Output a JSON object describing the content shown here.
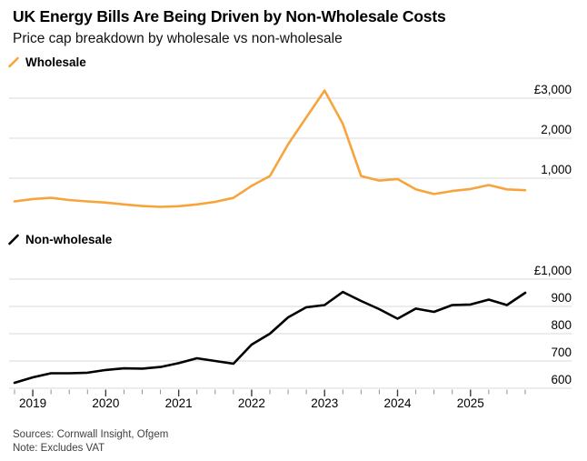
{
  "header": {
    "title": "UK Energy Bills Are Being Driven by Non-Wholesale Costs",
    "subtitle": "Price cap breakdown by wholesale vs non-wholesale"
  },
  "footer": {
    "sources": "Sources: Cornwall Insight, Ofgem",
    "note": "Note: Excludes VAT"
  },
  "colors": {
    "wholesale_line": "#F7A43C",
    "non_wholesale_line": "#000000",
    "gridline": "#D8D8D8",
    "minor_tick": "#8F8F8F",
    "major_tick": "#3C3C3C"
  },
  "x_axis": {
    "year_labels": [
      "2019",
      "2020",
      "2021",
      "2022",
      "2023",
      "2024",
      "2025"
    ],
    "quarters_per_year": 4
  },
  "chart_data": [
    {
      "type": "line",
      "name": "Wholesale",
      "color": "#F7A43C",
      "currency": "GBP",
      "x": [
        "2018 Q4",
        "2019 Q1",
        "2019 Q2",
        "2019 Q3",
        "2019 Q4",
        "2020 Q1",
        "2020 Q2",
        "2020 Q3",
        "2020 Q4",
        "2021 Q1",
        "2021 Q2",
        "2021 Q3",
        "2021 Q4",
        "2022 Q1",
        "2022 Q2",
        "2022 Q3",
        "2022 Q4",
        "2023 Q1",
        "2023 Q2",
        "2023 Q3",
        "2023 Q4",
        "2024 Q1",
        "2024 Q2",
        "2024 Q3",
        "2024 Q4",
        "2025 Q1",
        "2025 Q2",
        "2025 Q3",
        "2025 Q4"
      ],
      "values": [
        420,
        480,
        510,
        455,
        420,
        390,
        345,
        305,
        285,
        300,
        345,
        410,
        510,
        810,
        1055,
        1850,
        2520,
        3190,
        2360,
        1055,
        940,
        980,
        720,
        605,
        680,
        730,
        830,
        720,
        700
      ],
      "yticks": [
        1000,
        2000,
        3000
      ],
      "ytick_labels": [
        "1,000",
        "2,000",
        "£3,000"
      ],
      "ylim": [
        0,
        3300
      ],
      "grid": "horizontal",
      "legend_position": "top-left",
      "ylabel": "",
      "xlabel": ""
    },
    {
      "type": "line",
      "name": "Non-wholesale",
      "color": "#000000",
      "currency": "GBP",
      "x": [
        "2018 Q4",
        "2019 Q1",
        "2019 Q2",
        "2019 Q3",
        "2019 Q4",
        "2020 Q1",
        "2020 Q2",
        "2020 Q3",
        "2020 Q4",
        "2021 Q1",
        "2021 Q2",
        "2021 Q3",
        "2021 Q4",
        "2022 Q1",
        "2022 Q2",
        "2022 Q3",
        "2022 Q4",
        "2023 Q1",
        "2023 Q2",
        "2023 Q3",
        "2023 Q4",
        "2024 Q1",
        "2024 Q2",
        "2024 Q3",
        "2024 Q4",
        "2025 Q1",
        "2025 Q2",
        "2025 Q3",
        "2025 Q4"
      ],
      "values": [
        620,
        640,
        655,
        655,
        657,
        667,
        673,
        672,
        678,
        692,
        710,
        700,
        690,
        760,
        800,
        860,
        897,
        905,
        953,
        920,
        890,
        855,
        892,
        880,
        905,
        907,
        925,
        905,
        950
      ],
      "yticks": [
        600,
        700,
        800,
        900,
        1000
      ],
      "ytick_labels": [
        "600",
        "700",
        "800",
        "900",
        "£1,000"
      ],
      "ylim": [
        580,
        1030
      ],
      "grid": "horizontal",
      "legend_position": "top-left",
      "ylabel": "",
      "xlabel": ""
    }
  ]
}
